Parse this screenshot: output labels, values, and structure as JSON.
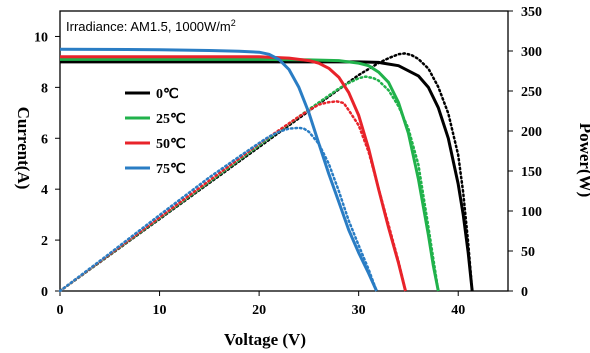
{
  "chart_data": {
    "type": "line",
    "annotation": {
      "text": "Irradiance: AM1.5,  1000W/m",
      "sup": "2"
    },
    "xlabel": "Voltage (V)",
    "ylabel_left": "Current(A)",
    "ylabel_right": "Power(W)",
    "xlim": [
      0,
      45
    ],
    "ylim_left": [
      0,
      11
    ],
    "ylim_right": [
      0,
      350
    ],
    "x_ticks": [
      0,
      10,
      20,
      30,
      40
    ],
    "y_left_ticks": [
      0,
      2,
      4,
      6,
      8,
      10
    ],
    "y_right_ticks": [
      0,
      50,
      100,
      150,
      200,
      250,
      300,
      350
    ],
    "grid": false,
    "legend_position": "center-left",
    "series": [
      {
        "name": "0℃",
        "color": "#000000",
        "current": [
          [
            0,
            9.0
          ],
          [
            5,
            9.0
          ],
          [
            10,
            9.0
          ],
          [
            15,
            9.0
          ],
          [
            20,
            9.0
          ],
          [
            25,
            9.0
          ],
          [
            30,
            9.0
          ],
          [
            32,
            8.98
          ],
          [
            34,
            8.85
          ],
          [
            36,
            8.45
          ],
          [
            37,
            8.0
          ],
          [
            38,
            7.2
          ],
          [
            39,
            6.0
          ],
          [
            40,
            4.2
          ],
          [
            40.5,
            3.0
          ],
          [
            41,
            1.5
          ],
          [
            41.4,
            0
          ]
        ],
        "power": [
          [
            0,
            0
          ],
          [
            5,
            45
          ],
          [
            10,
            90
          ],
          [
            15,
            135
          ],
          [
            20,
            180
          ],
          [
            25,
            225
          ],
          [
            28,
            252
          ],
          [
            30,
            270
          ],
          [
            32,
            285
          ],
          [
            33,
            291
          ],
          [
            34,
            296
          ],
          [
            34.6,
            297
          ],
          [
            35.3,
            295
          ],
          [
            36,
            290
          ],
          [
            37,
            278
          ],
          [
            38,
            255
          ],
          [
            39,
            222
          ],
          [
            40,
            170
          ],
          [
            40.5,
            123
          ],
          [
            41,
            60
          ],
          [
            41.4,
            0
          ]
        ]
      },
      {
        "name": "25℃",
        "color": "#21b24b",
        "current": [
          [
            0,
            9.1
          ],
          [
            10,
            9.1
          ],
          [
            20,
            9.1
          ],
          [
            25,
            9.08
          ],
          [
            28,
            9.05
          ],
          [
            30,
            8.95
          ],
          [
            31,
            8.85
          ],
          [
            32,
            8.6
          ],
          [
            33,
            8.2
          ],
          [
            34,
            7.4
          ],
          [
            35,
            6.2
          ],
          [
            36,
            4.4
          ],
          [
            36.5,
            3.3
          ],
          [
            37,
            2.2
          ],
          [
            37.5,
            1.0
          ],
          [
            38,
            0
          ]
        ],
        "power": [
          [
            0,
            0
          ],
          [
            10,
            91
          ],
          [
            20,
            182
          ],
          [
            25,
            227
          ],
          [
            28,
            253
          ],
          [
            29,
            260
          ],
          [
            30,
            266
          ],
          [
            30.7,
            268
          ],
          [
            31.5,
            266
          ],
          [
            32,
            263
          ],
          [
            33,
            251
          ],
          [
            34,
            231
          ],
          [
            35,
            203
          ],
          [
            36,
            158
          ],
          [
            37,
            80
          ],
          [
            38,
            0
          ]
        ]
      },
      {
        "name": "50℃",
        "color": "#e8232a",
        "current": [
          [
            0,
            9.2
          ],
          [
            10,
            9.2
          ],
          [
            20,
            9.2
          ],
          [
            23,
            9.15
          ],
          [
            25,
            9.05
          ],
          [
            26,
            8.95
          ],
          [
            27,
            8.75
          ],
          [
            28,
            8.4
          ],
          [
            29,
            7.8
          ],
          [
            30,
            6.9
          ],
          [
            31,
            5.6
          ],
          [
            32,
            4.0
          ],
          [
            33,
            2.5
          ],
          [
            34,
            1.1
          ],
          [
            34.7,
            0
          ]
        ],
        "power": [
          [
            0,
            0
          ],
          [
            10,
            92
          ],
          [
            20,
            184
          ],
          [
            22,
            201
          ],
          [
            24,
            218
          ],
          [
            25,
            226
          ],
          [
            26,
            233
          ],
          [
            27,
            236
          ],
          [
            27.8,
            237
          ],
          [
            28.5,
            235
          ],
          [
            29,
            226
          ],
          [
            30,
            207
          ],
          [
            31,
            174
          ],
          [
            32,
            128
          ],
          [
            33,
            83
          ],
          [
            34,
            37
          ],
          [
            34.7,
            0
          ]
        ]
      },
      {
        "name": "75℃",
        "color": "#2a7dc4",
        "current": [
          [
            0,
            9.5
          ],
          [
            10,
            9.48
          ],
          [
            15,
            9.45
          ],
          [
            18,
            9.42
          ],
          [
            20,
            9.38
          ],
          [
            21,
            9.3
          ],
          [
            22,
            9.1
          ],
          [
            23,
            8.7
          ],
          [
            24,
            8.0
          ],
          [
            25,
            7.0
          ],
          [
            26,
            5.8
          ],
          [
            27,
            4.6
          ],
          [
            28,
            3.5
          ],
          [
            29,
            2.4
          ],
          [
            30,
            1.5
          ],
          [
            31,
            0.7
          ],
          [
            31.8,
            0
          ]
        ],
        "power": [
          [
            0,
            0
          ],
          [
            5,
            47
          ],
          [
            10,
            95
          ],
          [
            15,
            142
          ],
          [
            18,
            168
          ],
          [
            20,
            185
          ],
          [
            21,
            193
          ],
          [
            22,
            199
          ],
          [
            23,
            203
          ],
          [
            24,
            204
          ],
          [
            24.5,
            203
          ],
          [
            25,
            199
          ],
          [
            26,
            184
          ],
          [
            27,
            159
          ],
          [
            28,
            125
          ],
          [
            29,
            88
          ],
          [
            30,
            57
          ],
          [
            31,
            27
          ],
          [
            31.8,
            0
          ]
        ]
      }
    ]
  }
}
